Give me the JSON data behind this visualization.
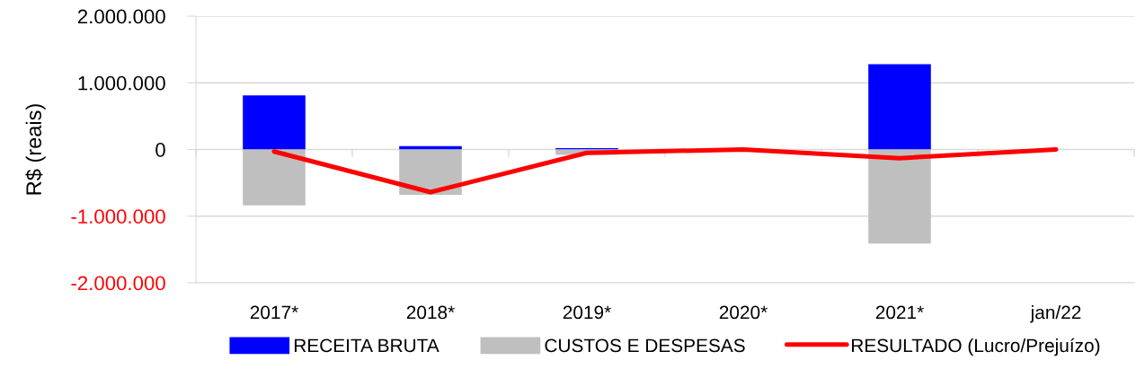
{
  "chart_data": {
    "type": "bar",
    "ylabel": "R$ (reais)",
    "categories": [
      "2017*",
      "2018*",
      "2019*",
      "2020*",
      "2021*",
      "jan/22"
    ],
    "stacked": true,
    "series": [
      {
        "name": "RECEITA BRUTA",
        "color": "#0000ff",
        "values": [
          810000,
          50000,
          20000,
          0,
          1280000,
          0
        ]
      },
      {
        "name": "CUSTOS E DESPESAS",
        "color": "#bfbfbf",
        "values": [
          -840000,
          -680000,
          -80000,
          0,
          -1410000,
          0
        ]
      },
      {
        "name": "RESULTADO (Lucro/Prejuízo)",
        "type": "line",
        "color": "#ff0000",
        "values": [
          -30000,
          -640000,
          -50000,
          0,
          -130000,
          0
        ]
      }
    ],
    "ylim": [
      -2000000,
      2000000
    ],
    "yticks": [
      {
        "value": -2000000,
        "label": "-2.000.000"
      },
      {
        "value": -1000000,
        "label": "-1.000.000"
      },
      0,
      {
        "value": 1000000,
        "label": "1.000.000"
      },
      {
        "value": 2000000,
        "label": "2.000.000"
      }
    ],
    "grid": "y",
    "legend": "bottom"
  }
}
